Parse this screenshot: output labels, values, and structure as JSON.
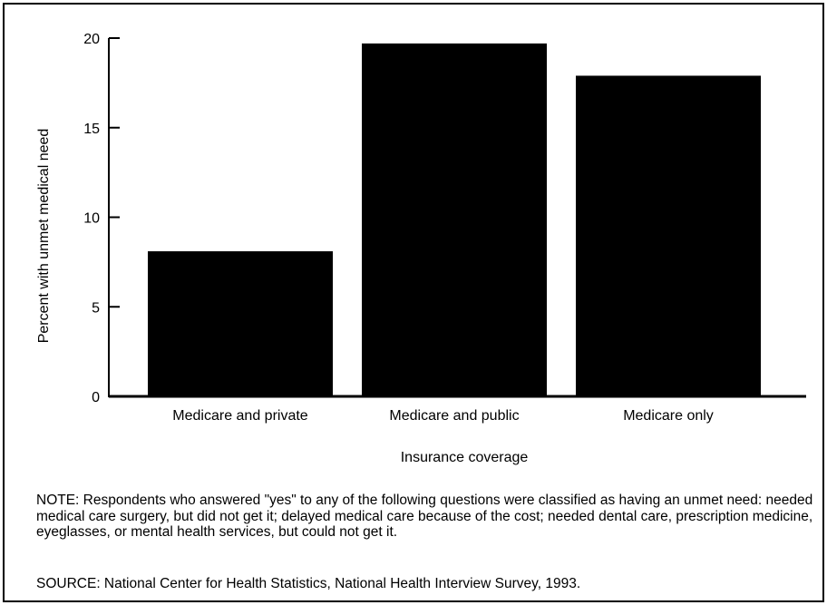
{
  "chart_data": {
    "type": "bar",
    "categories": [
      "Medicare and private",
      "Medicare and public",
      "Medicare only"
    ],
    "values": [
      8.1,
      19.7,
      17.9
    ],
    "title": "",
    "xlabel": "Insurance coverage",
    "ylabel": "Percent with unmet medical need",
    "ylim": [
      0,
      20
    ],
    "yticks": [
      0,
      5,
      10,
      15,
      20
    ],
    "grid": false,
    "bar_color": "#000000"
  },
  "note": "NOTE: Respondents who answered \"yes\" to any of the following questions were classified as having an unmet need: needed medical care surgery, but did not get it; delayed medical care because of the cost; needed dental care, prescription medicine, eyeglasses, or mental health services, but could not get it.",
  "source": "SOURCE: National Center for Health Statistics, National Health Interview Survey, 1993."
}
